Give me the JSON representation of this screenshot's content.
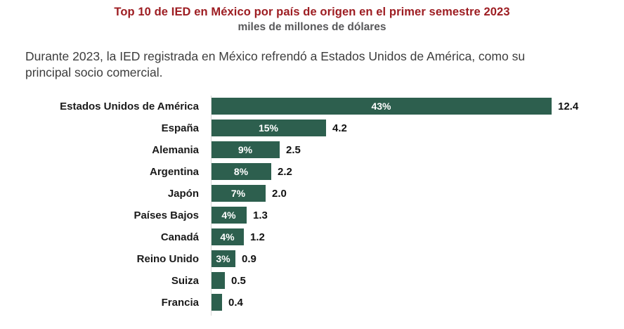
{
  "header": {
    "title": "Top 10 de IED en México por país de origen en el primer semestre 2023",
    "subtitle": "miles de millones de dólares"
  },
  "intro": {
    "text": "Durante 2023, la IED registrada en México refrendó a Estados Unidos de América, como su\nprincipal socio comercial."
  },
  "colors": {
    "bar": "#2d5f4e",
    "title": "#9d1d22",
    "subtitle": "#58585a",
    "body_text": "#3d3d3d",
    "label_text": "#1a1a1a",
    "percent_text": "#ffffff",
    "value_text": "#111111",
    "axis_line": "#d9d9d9"
  },
  "chart_data": {
    "type": "bar",
    "orientation": "horizontal",
    "title": "Top 10 de IED en México por país de origen en el primer semestre 2023",
    "subtitle": "miles de millones de dólares",
    "unit": "miles de millones de dólares",
    "categories": [
      "Estados Unidos de América",
      "España",
      "Alemania",
      "Argentina",
      "Japón",
      "Países Bajos",
      "Canadá",
      "Reino Unido",
      "Suiza",
      "Francia"
    ],
    "values": [
      12.4,
      4.2,
      2.5,
      2.2,
      2.0,
      1.3,
      1.2,
      0.9,
      0.5,
      0.4
    ],
    "value_labels": [
      "12.4",
      "4.2",
      "2.5",
      "2.2",
      "2.0",
      "1.3",
      "1.2",
      "0.9",
      "0.5",
      "0.4"
    ],
    "percent_labels": [
      "43%",
      "15%",
      "9%",
      "8%",
      "7%",
      "4%",
      "4%",
      "3%",
      "",
      ""
    ],
    "xlim": [
      0,
      12.4
    ],
    "grid": false,
    "legend": false,
    "bar_color": "#2d5f4e"
  }
}
